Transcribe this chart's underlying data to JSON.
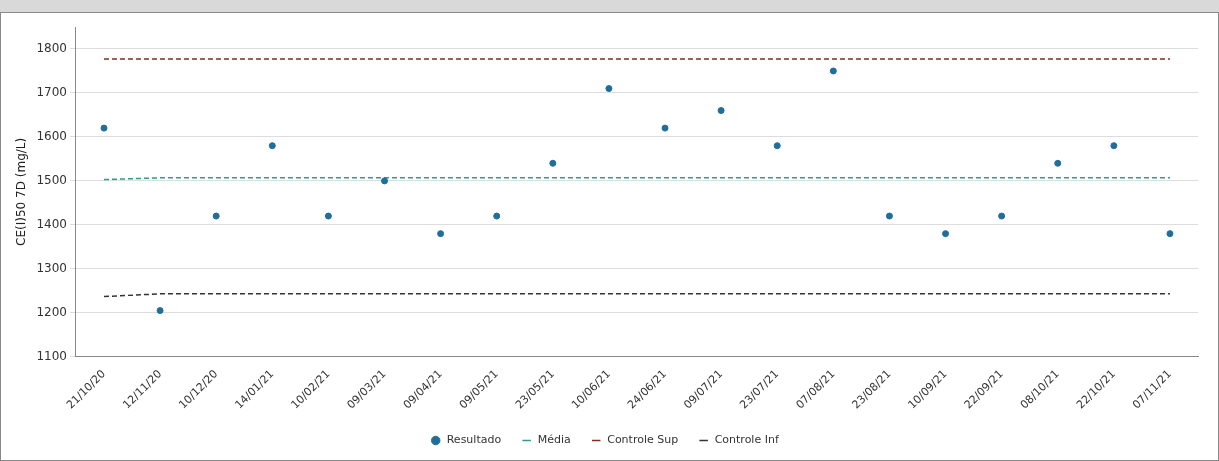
{
  "chart_data": {
    "type": "scatter",
    "ylabel": "CE(I)50 7D (mg/L)",
    "categories": [
      "21/10/20",
      "12/11/20",
      "10/12/20",
      "14/01/21",
      "10/02/21",
      "09/03/21",
      "09/04/21",
      "09/05/21",
      "23/05/21",
      "10/06/21",
      "24/06/21",
      "09/07/21",
      "23/07/21",
      "07/08/21",
      "23/08/21",
      "10/09/21",
      "22/09/21",
      "08/10/21",
      "22/10/21",
      "07/11/21"
    ],
    "series": [
      {
        "name": "Resultado",
        "color": "#1f6f9a",
        "marker": "circle",
        "values": [
          1620,
          1205,
          1420,
          1580,
          1420,
          1500,
          1380,
          1420,
          1540,
          1710,
          1620,
          1660,
          1580,
          1750,
          1420,
          1380,
          1420,
          1540,
          1580,
          1380
        ]
      },
      {
        "name": "Média",
        "type": "line",
        "marker": "none",
        "color": "#2a9d8f",
        "values": [
          1503,
          1507,
          1507,
          1507,
          1507,
          1507,
          1507,
          1507,
          1507,
          1507,
          1507,
          1507,
          1507,
          1507,
          1507,
          1507,
          1507,
          1507,
          1507,
          1507
        ]
      },
      {
        "name": "Controle Sup",
        "type": "line",
        "marker": "none",
        "color": "#8b2a1a",
        "values": [
          1777,
          1777,
          1777,
          1777,
          1777,
          1777,
          1777,
          1777,
          1777,
          1777,
          1777,
          1777,
          1777,
          1777,
          1777,
          1777,
          1777,
          1777,
          1777,
          1777
        ]
      },
      {
        "name": "Controle Inf",
        "type": "line",
        "marker": "none",
        "color": "#333333",
        "values": [
          1237,
          1243,
          1243,
          1243,
          1243,
          1243,
          1243,
          1243,
          1243,
          1243,
          1243,
          1243,
          1243,
          1243,
          1243,
          1243,
          1243,
          1243,
          1243,
          1243
        ]
      }
    ],
    "ylim": [
      1100,
      1850
    ],
    "yticks": [
      1100,
      1200,
      1300,
      1400,
      1500,
      1600,
      1700,
      1800
    ],
    "grid": "y",
    "legend": "bottom",
    "line_style": "dashed"
  }
}
